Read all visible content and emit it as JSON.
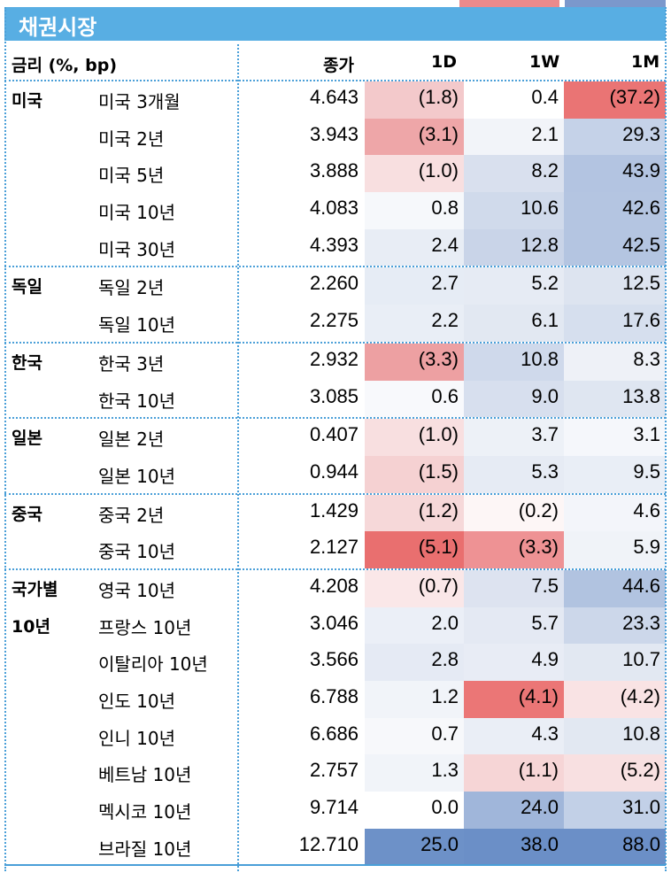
{
  "colors": {
    "header_bg": "#58aee3",
    "divider": "#4a9fd8",
    "negative_strong": "#e67373",
    "positive_strong": "#6b8fc7"
  },
  "section_title": "채권시장",
  "header": {
    "label": "금리 (%, bp)",
    "close": "종가",
    "d1": "1D",
    "w1": "1W",
    "m1": "1M"
  },
  "groups": [
    {
      "category": "미국",
      "rows": [
        {
          "name": "미국 3개월",
          "close": "4.643",
          "d1": "(1.8)",
          "w1": "0.4",
          "m1": "(37.2)",
          "c": [
            "#f3c9cb",
            "#ffffff",
            "#ea7474"
          ]
        },
        {
          "name": "미국 2년",
          "close": "3.943",
          "d1": "(3.1)",
          "w1": "2.1",
          "m1": "29.3",
          "c": [
            "#eea6a8",
            "#f2f4f9",
            "#c5d2e8"
          ]
        },
        {
          "name": "미국 5년",
          "close": "3.888",
          "d1": "(1.0)",
          "w1": "8.2",
          "m1": "43.9",
          "c": [
            "#f8dfe0",
            "#d9e0ee",
            "#b3c4e1"
          ]
        },
        {
          "name": "미국 10년",
          "close": "4.083",
          "d1": "0.8",
          "w1": "10.6",
          "m1": "42.6",
          "c": [
            "#f6f8fb",
            "#d0daeb",
            "#b4c5e1"
          ]
        },
        {
          "name": "미국 30년",
          "close": "4.393",
          "d1": "2.4",
          "w1": "12.8",
          "m1": "42.5",
          "c": [
            "#e8edf5",
            "#c9d4e8",
            "#b4c5e1"
          ]
        }
      ]
    },
    {
      "category": "독일",
      "rows": [
        {
          "name": "독일 2년",
          "close": "2.260",
          "d1": "2.7",
          "w1": "5.2",
          "m1": "12.5",
          "c": [
            "#e6ecf5",
            "#e6ebf4",
            "#dde4f0"
          ]
        },
        {
          "name": "독일 10년",
          "close": "2.275",
          "d1": "2.2",
          "w1": "6.1",
          "m1": "17.6",
          "c": [
            "#e9eef6",
            "#e2e8f2",
            "#d6dfee"
          ]
        }
      ]
    },
    {
      "category": "한국",
      "rows": [
        {
          "name": "한국 3년",
          "close": "2.932",
          "d1": "(3.3)",
          "w1": "10.8",
          "m1": "8.3",
          "c": [
            "#eda0a2",
            "#cfd9eb",
            "#eef1f7"
          ]
        },
        {
          "name": "한국 10년",
          "close": "3.085",
          "d1": "0.6",
          "w1": "9.0",
          "m1": "13.8",
          "c": [
            "#f8f9fc",
            "#d7dfee",
            "#dfe6f1"
          ]
        }
      ]
    },
    {
      "category": "일본",
      "rows": [
        {
          "name": "일본 2년",
          "close": "0.407",
          "d1": "(1.0)",
          "w1": "3.7",
          "m1": "3.1",
          "c": [
            "#f8dfe0",
            "#edf1f7",
            "#f5f7fb"
          ]
        },
        {
          "name": "일본 10년",
          "close": "0.944",
          "d1": "(1.5)",
          "w1": "5.3",
          "m1": "9.5",
          "c": [
            "#f5d1d2",
            "#e6ebf4",
            "#e9eef6"
          ]
        }
      ]
    },
    {
      "category": "중국",
      "rows": [
        {
          "name": "중국 2년",
          "close": "1.429",
          "d1": "(1.2)",
          "w1": "(0.2)",
          "m1": "4.6",
          "c": [
            "#f6d8d9",
            "#fdf6f6",
            "#f3f5fa"
          ]
        },
        {
          "name": "중국 10년",
          "close": "2.127",
          "d1": "(5.1)",
          "w1": "(3.3)",
          "m1": "5.9",
          "c": [
            "#e96f6f",
            "#ee9294",
            "#f0f3f8"
          ]
        }
      ]
    },
    {
      "category": "국가별",
      "category2": "10년",
      "rows": [
        {
          "name": "영국 10년",
          "close": "4.208",
          "d1": "(0.7)",
          "w1": "7.5",
          "m1": "44.6",
          "c": [
            "#fae7e8",
            "#dde3f0",
            "#b1c3e0"
          ]
        },
        {
          "name": "프랑스 10년",
          "close": "3.046",
          "d1": "2.0",
          "w1": "5.7",
          "m1": "23.3",
          "c": [
            "#ebeff7",
            "#e4e9f3",
            "#ccd7ea"
          ]
        },
        {
          "name": "이탈리아 10년",
          "close": "3.566",
          "d1": "2.8",
          "w1": "4.9",
          "m1": "10.7",
          "c": [
            "#e5eaf4",
            "#e8ecf5",
            "#e2e8f2"
          ]
        },
        {
          "name": "인도 10년",
          "close": "6.788",
          "d1": "1.2",
          "w1": "(4.1)",
          "m1": "(4.2)",
          "c": [
            "#f1f4f9",
            "#eb7676",
            "#f9e3e4"
          ]
        },
        {
          "name": "인니 10년",
          "close": "6.686",
          "d1": "0.7",
          "w1": "4.3",
          "m1": "10.8",
          "c": [
            "#f7f8fb",
            "#eaeef6",
            "#e2e8f2"
          ]
        },
        {
          "name": "베트남 10년",
          "close": "2.757",
          "d1": "1.3",
          "w1": "(1.1)",
          "m1": "(5.2)",
          "c": [
            "#f1f4f9",
            "#f6d5d6",
            "#f8e0e1"
          ]
        },
        {
          "name": "멕시코 10년",
          "close": "9.714",
          "d1": "0.0",
          "w1": "24.0",
          "m1": "31.0",
          "c": [
            "#ffffff",
            "#a0b6da",
            "#c2d0e7"
          ]
        },
        {
          "name": "브라질 10년",
          "close": "12.710",
          "d1": "25.0",
          "w1": "38.0",
          "m1": "88.0",
          "c": [
            "#6d91c8",
            "#6b8fc7",
            "#6b8fc7"
          ]
        }
      ]
    }
  ]
}
